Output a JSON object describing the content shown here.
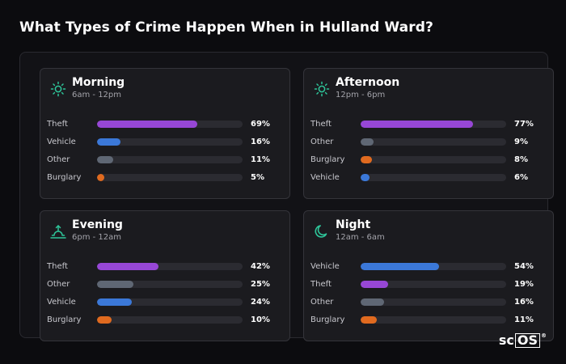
{
  "title": "What Types of Crime Happen When in Hulland Ward?",
  "logo": {
    "prefix": "sc",
    "box": "OS",
    "mark": "®"
  },
  "colors": {
    "Theft": "#9747d6",
    "Vehicle": "#3b78d8",
    "Other": "#5f6774",
    "Burglary": "#e06a1f",
    "accent": "#2ec69a"
  },
  "chart_data": [
    {
      "type": "bar",
      "name": "Morning",
      "range": "6am - 12pm",
      "icon": "sun-icon",
      "categories": [
        "Theft",
        "Vehicle",
        "Other",
        "Burglary"
      ],
      "values": [
        69,
        16,
        11,
        5
      ],
      "labels": [
        "69%",
        "16%",
        "11%",
        "5%"
      ]
    },
    {
      "type": "bar",
      "name": "Afternoon",
      "range": "12pm - 6pm",
      "icon": "sun-icon",
      "categories": [
        "Theft",
        "Other",
        "Burglary",
        "Vehicle"
      ],
      "values": [
        77,
        9,
        8,
        6
      ],
      "labels": [
        "77%",
        "9%",
        "8%",
        "6%"
      ]
    },
    {
      "type": "bar",
      "name": "Evening",
      "range": "6pm - 12am",
      "icon": "sunset-icon",
      "categories": [
        "Theft",
        "Other",
        "Vehicle",
        "Burglary"
      ],
      "values": [
        42,
        25,
        24,
        10
      ],
      "labels": [
        "42%",
        "25%",
        "24%",
        "10%"
      ]
    },
    {
      "type": "bar",
      "name": "Night",
      "range": "12am - 6am",
      "icon": "moon-icon",
      "categories": [
        "Vehicle",
        "Theft",
        "Other",
        "Burglary"
      ],
      "values": [
        54,
        19,
        16,
        11
      ],
      "labels": [
        "54%",
        "19%",
        "16%",
        "11%"
      ]
    }
  ]
}
